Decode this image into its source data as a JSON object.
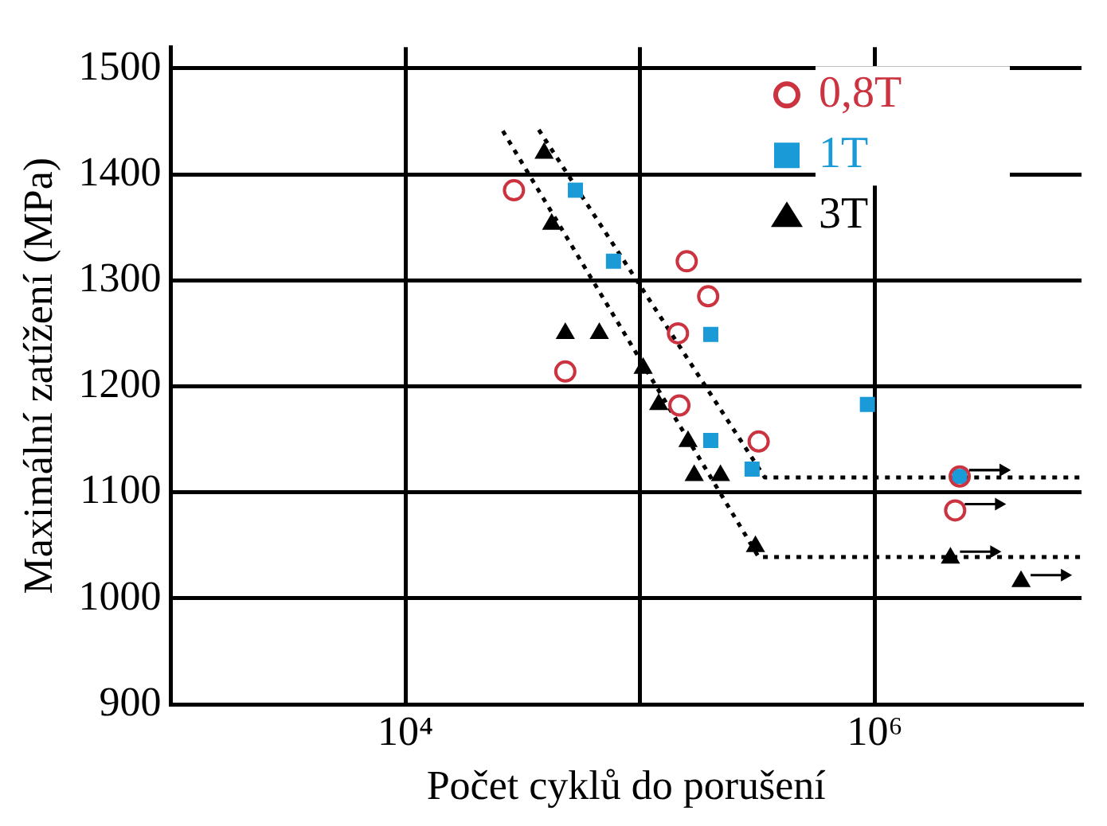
{
  "chart_data": {
    "type": "scatter",
    "xlabel": "Počet cyklů do porušení",
    "ylabel": "Maximální zatížení (MPa)",
    "log": "x",
    "grid": true,
    "legend": "top right",
    "xlim": [
      1000,
      7600000
    ],
    "xticks": [
      {
        "value": 1000,
        "label": null
      },
      {
        "value": 10000,
        "label": "10⁴"
      },
      {
        "value": 100000,
        "label": null
      },
      {
        "value": 1000000,
        "label": "10⁶"
      }
    ],
    "ylim": [
      900,
      1520
    ],
    "yticks": [
      900,
      1000,
      1100,
      1200,
      1300,
      1400,
      1500
    ],
    "series": [
      {
        "name": "0,8T",
        "color": "#cc3340",
        "marker": "circle",
        "x": [
          29000,
          158000,
          195000,
          145000,
          48000,
          147000,
          320000,
          2300000,
          2200000
        ],
        "values": [
          1385,
          1318,
          1285,
          1250,
          1214,
          1182,
          1148,
          1115,
          1083
        ]
      },
      {
        "name": "1T",
        "color": "#1a9ad6",
        "marker": "square",
        "x": [
          53000,
          77000,
          200000,
          200000,
          300000,
          930000,
          2300000
        ],
        "values": [
          1385,
          1318,
          1249,
          1149,
          1122,
          1183,
          1115
        ]
      },
      {
        "name": "3T",
        "color": "#000000",
        "marker": "triangle",
        "x": [
          39000,
          42000,
          48000,
          67000,
          103000,
          120000,
          160000,
          170000,
          220000,
          310000,
          2100000,
          4200000
        ],
        "values": [
          1420,
          1353,
          1250,
          1250,
          1217,
          1183,
          1148,
          1116,
          1116,
          1049,
          1038,
          1016
        ]
      },
      {
        "type": "line",
        "color": "#000000",
        "marker": "none",
        "line_style": "dotted",
        "x": [
          37000,
          340000,
          7600000
        ],
        "values": [
          1442,
          1114,
          1114
        ]
      },
      {
        "type": "line",
        "color": "#000000",
        "marker": "none",
        "line_style": "dotted",
        "x": [
          26000,
          320000,
          7600000
        ],
        "values": [
          1441,
          1039,
          1039
        ]
      }
    ]
  }
}
